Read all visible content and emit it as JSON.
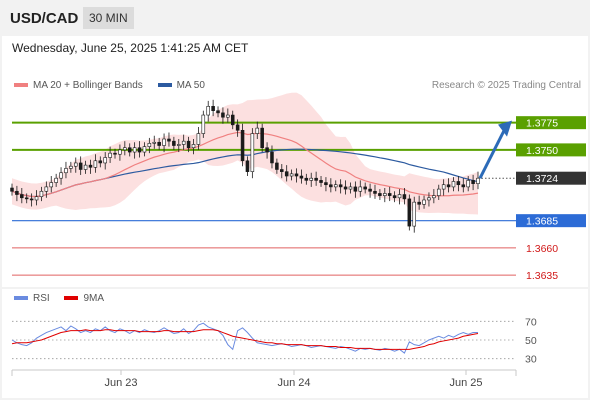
{
  "header": {
    "symbol": "USD/CAD",
    "timeframe": "30 MIN"
  },
  "timestamp": "Wednesday, June 25, 2025 1:41:25 AM CET",
  "credit": "Research © 2025 Trading Central",
  "legend": {
    "ma20": {
      "label": "MA 20 + Bollinger Bands",
      "color": "#f08080"
    },
    "ma50": {
      "label": "MA 50",
      "color": "#2c5aa0"
    }
  },
  "rsi_legend": {
    "rsi": {
      "label": "RSI",
      "color": "#6a8be0"
    },
    "ma9": {
      "label": "9MA",
      "color": "#e00000"
    }
  },
  "chart_data": [
    {
      "type": "candlestick",
      "title": "",
      "ylim": [
        1.3625,
        1.3805
      ],
      "x_ticks": [
        "Jun 23",
        "Jun 24",
        "Jun 25"
      ],
      "current_price": 1.3724,
      "levels": [
        {
          "value": 1.3775,
          "label": "1.3775",
          "kind": "resistance",
          "color": "#5aa000"
        },
        {
          "value": 1.375,
          "label": "1.3750",
          "kind": "resistance",
          "color": "#5aa000"
        },
        {
          "value": 1.3724,
          "label": "1.3724",
          "kind": "last",
          "color": "#333333"
        },
        {
          "value": 1.3685,
          "label": "1.3685",
          "kind": "pivot",
          "color": "#2c6bd6"
        },
        {
          "value": 1.366,
          "label": "1.3660",
          "kind": "support",
          "color": "#e06060"
        },
        {
          "value": 1.3635,
          "label": "1.3635",
          "kind": "support",
          "color": "#e06060"
        }
      ],
      "forecast": {
        "from": 1.3724,
        "to": 1.3775
      },
      "close": [
        1.3712,
        1.3709,
        1.3706,
        1.3705,
        1.3704,
        1.3707,
        1.3712,
        1.3716,
        1.372,
        1.3724,
        1.3729,
        1.3733,
        1.3735,
        1.3738,
        1.3732,
        1.3736,
        1.3734,
        1.374,
        1.3738,
        1.3743,
        1.3747,
        1.3746,
        1.375,
        1.3752,
        1.3748,
        1.3752,
        1.3748,
        1.3753,
        1.3756,
        1.3757,
        1.3754,
        1.376,
        1.3758,
        1.3754,
        1.3755,
        1.3758,
        1.3752,
        1.3755,
        1.3765,
        1.3782,
        1.379,
        1.3786,
        1.3784,
        1.378,
        1.3782,
        1.3773,
        1.3768,
        1.374,
        1.373,
        1.3765,
        1.377,
        1.3752,
        1.3748,
        1.3738,
        1.3732,
        1.373,
        1.3726,
        1.3728,
        1.3726,
        1.3724,
        1.3722,
        1.3724,
        1.3722,
        1.372,
        1.3718,
        1.3716,
        1.3718,
        1.3716,
        1.3714,
        1.3716,
        1.3712,
        1.3716,
        1.3714,
        1.3712,
        1.371,
        1.3708,
        1.371,
        1.3708,
        1.3706,
        1.3709,
        1.3705,
        1.368,
        1.3702,
        1.37,
        1.3704,
        1.3706,
        1.3708,
        1.3714,
        1.3718,
        1.3716,
        1.3721,
        1.3718,
        1.3716,
        1.3722,
        1.3719,
        1.3724
      ]
    },
    {
      "type": "line",
      "title": "RSI",
      "ylim": [
        20,
        80
      ],
      "y_ticks": [
        70,
        50,
        30
      ],
      "series": [
        {
          "name": "RSI",
          "values": [
            50,
            47,
            45,
            44,
            47,
            52,
            55,
            58,
            60,
            62,
            64,
            60,
            65,
            62,
            58,
            60,
            58,
            62,
            60,
            64,
            60,
            58,
            62,
            60,
            57,
            60,
            58,
            61,
            59,
            58,
            60,
            63,
            60,
            57,
            58,
            62,
            57,
            60,
            66,
            68,
            64,
            62,
            60,
            55,
            45,
            40,
            60,
            63,
            58,
            52,
            47,
            46,
            45,
            44,
            45,
            46,
            45,
            43,
            44,
            45,
            44,
            42,
            43,
            44,
            43,
            42,
            41,
            43,
            42,
            40,
            38,
            41,
            40,
            41,
            40,
            39,
            41,
            40,
            38,
            40,
            36,
            48,
            45,
            44,
            47,
            50,
            52,
            54,
            52,
            55,
            53,
            56,
            58,
            56,
            58,
            58
          ]
        },
        {
          "name": "9MA",
          "values": [
            46,
            47,
            47,
            47,
            48,
            49,
            50,
            52,
            54,
            56,
            58,
            59,
            60,
            60,
            60,
            61,
            60,
            60,
            60,
            61,
            61,
            60,
            60,
            60,
            60,
            60,
            59,
            59,
            59,
            59,
            59,
            60,
            60,
            59,
            59,
            59,
            59,
            59,
            60,
            61,
            61,
            61,
            60,
            58,
            56,
            54,
            53,
            52,
            51,
            50,
            49,
            48,
            47,
            47,
            46,
            46,
            45,
            45,
            45,
            45,
            44,
            44,
            44,
            44,
            43,
            43,
            43,
            42,
            42,
            42,
            41,
            41,
            41,
            41,
            40,
            40,
            40,
            40,
            40,
            40,
            40,
            40,
            41,
            42,
            43,
            45,
            46,
            48,
            49,
            50,
            51,
            52,
            54,
            55,
            56,
            57
          ]
        }
      ]
    }
  ]
}
